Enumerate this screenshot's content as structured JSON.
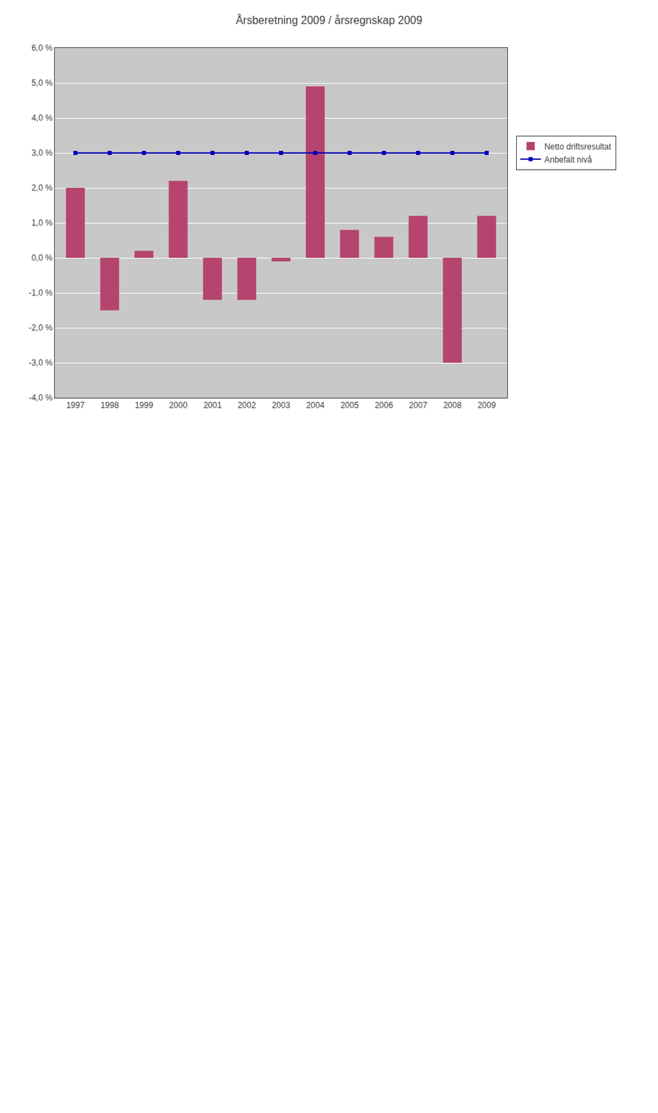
{
  "chart_data": {
    "type": "bar",
    "title": "Årsberetning 2009 / årsregnskap 2009",
    "categories": [
      "1997",
      "1998",
      "1999",
      "2000",
      "2001",
      "2002",
      "2003",
      "2004",
      "2005",
      "2006",
      "2007",
      "2008",
      "2009"
    ],
    "series": [
      {
        "name": "Netto driftsresultat",
        "type": "bar",
        "color": "#b5446e",
        "values": [
          2.0,
          -1.5,
          0.2,
          2.2,
          -1.2,
          -1.2,
          -0.1,
          4.9,
          0.8,
          0.6,
          1.2,
          -3.0,
          1.2
        ]
      },
      {
        "name": "Anbefalt nivå",
        "type": "line",
        "color": "#0000bb",
        "marker": "square",
        "line_style": "solid",
        "values": [
          3.0,
          3.0,
          3.0,
          3.0,
          3.0,
          3.0,
          3.0,
          3.0,
          3.0,
          3.0,
          3.0,
          3.0,
          3.0
        ]
      }
    ],
    "ylim": [
      -4.0,
      6.0
    ],
    "yticks": [
      {
        "value": -4.0,
        "label": "-4,0 %"
      },
      {
        "value": -3.0,
        "label": "-3,0 %"
      },
      {
        "value": -2.0,
        "label": "-2,0 %"
      },
      {
        "value": -1.0,
        "label": "-1,0 %"
      },
      {
        "value": 0.0,
        "label": "0,0 %"
      },
      {
        "value": 1.0,
        "label": "1,0 %"
      },
      {
        "value": 2.0,
        "label": "2,0 %"
      },
      {
        "value": 3.0,
        "label": "3,0 %"
      },
      {
        "value": 4.0,
        "label": "4,0 %"
      },
      {
        "value": 5.0,
        "label": "5,0 %"
      },
      {
        "value": 6.0,
        "label": "6,0 %"
      }
    ],
    "grid": true,
    "legend": "right"
  }
}
